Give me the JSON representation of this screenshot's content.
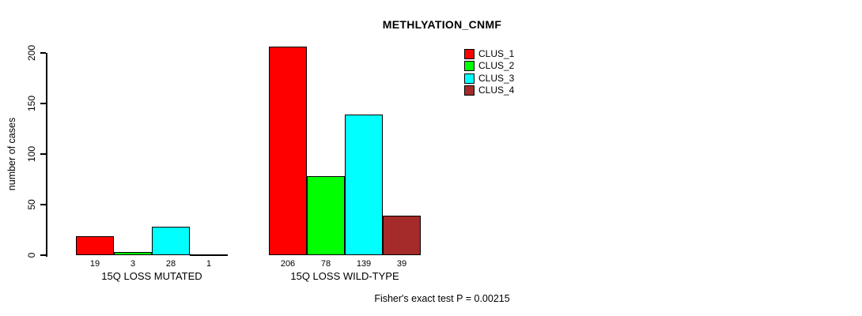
{
  "chart_data": {
    "type": "bar",
    "title": "METHLYATION_CNMF",
    "ylabel": "number of cases",
    "xlabel": "",
    "ylim": [
      0,
      200
    ],
    "yticks": [
      0,
      50,
      100,
      150,
      200
    ],
    "grid": false,
    "legend_position": "inside-top-right",
    "categories": [
      "15Q LOSS MUTATED",
      "15Q LOSS WILD-TYPE"
    ],
    "series": [
      {
        "name": "CLUS_1",
        "color": "#FF0000",
        "values": [
          19,
          206
        ]
      },
      {
        "name": "CLUS_2",
        "color": "#00FF00",
        "values": [
          3,
          78
        ]
      },
      {
        "name": "CLUS_3",
        "color": "#00FFFF",
        "values": [
          28,
          139
        ]
      },
      {
        "name": "CLUS_4",
        "color": "#A52A2A",
        "values": [
          1,
          39
        ]
      }
    ],
    "annotation": "Fisher's exact test P = 0.00215"
  },
  "colors": {
    "background": "#FFFFFF",
    "axis": "#000000",
    "text": "#000000"
  }
}
